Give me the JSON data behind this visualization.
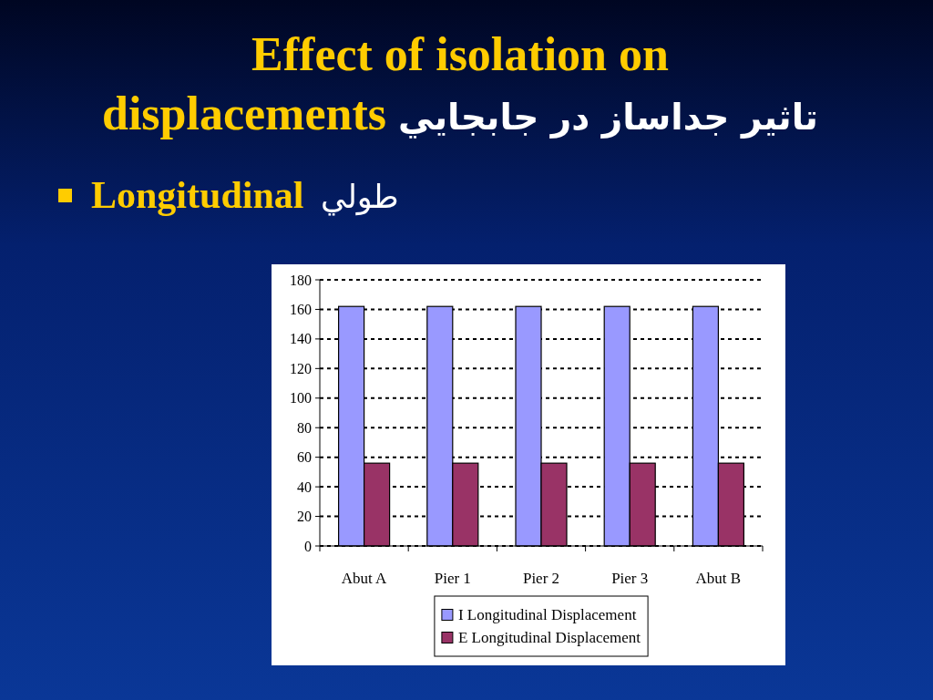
{
  "chart_data": {
    "type": "bar",
    "title": "Effect of isolation on displacements تاثير جداساز در جابجايي",
    "subtitle": "Longitudinal طولي",
    "categories": [
      "Abut A",
      "Pier 1",
      "Pier 2",
      "Pier 3",
      "Abut B"
    ],
    "series": [
      {
        "name": "I Longitudinal Displacement",
        "color": "#9999ff",
        "values": [
          162,
          162,
          162,
          162,
          162
        ]
      },
      {
        "name": "E Longitudinal Displacement",
        "color": "#993366",
        "values": [
          56,
          56,
          56,
          56,
          56
        ]
      }
    ],
    "ylim": [
      0,
      180
    ],
    "yticks": [
      0,
      20,
      40,
      60,
      80,
      100,
      120,
      140,
      160,
      180
    ],
    "grid": "y",
    "legend": "bottom"
  }
}
